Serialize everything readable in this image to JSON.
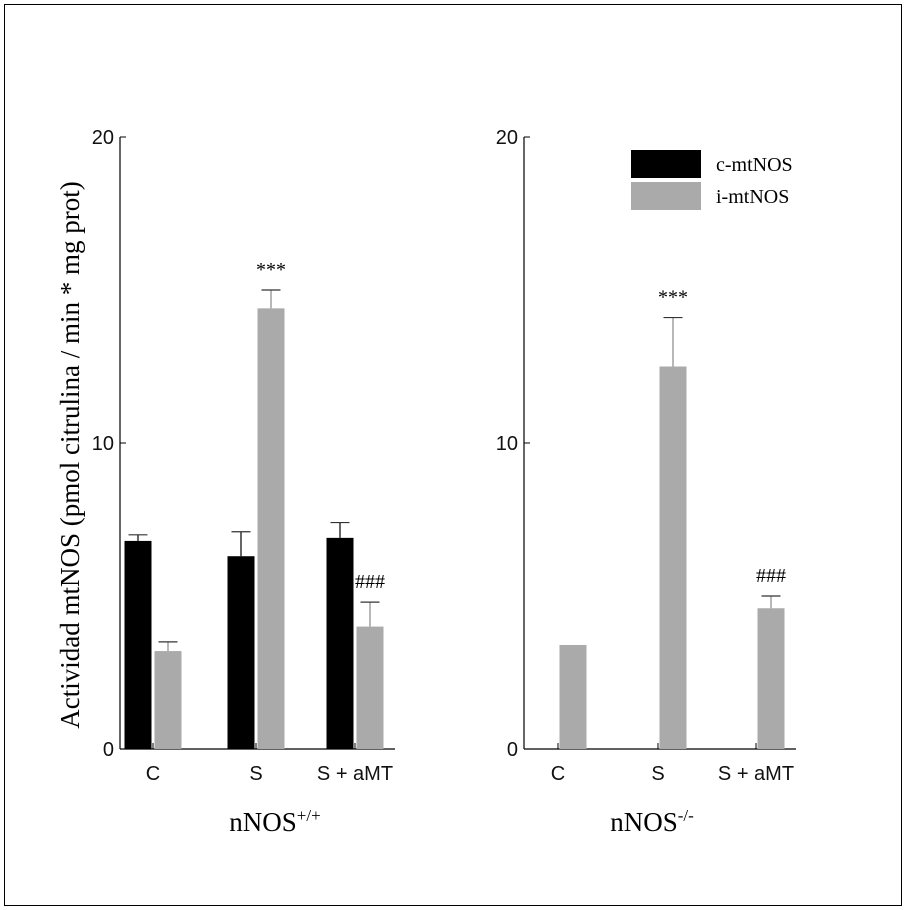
{
  "figure": {
    "ylabel": "Actividad mtNOS (pmol citrulina / min * mg prot)"
  },
  "chart_data": [
    {
      "type": "bar",
      "xlabel_main": "nNOS",
      "xlabel_sup": "+/+",
      "categories": [
        "C",
        "S",
        "S + aMT"
      ],
      "ylim": [
        0,
        20
      ],
      "yticks": [
        "0",
        "10",
        "20"
      ],
      "series": [
        {
          "name": "c-mtNOS",
          "color": "#000000",
          "values": [
            6.8,
            6.3,
            6.9
          ],
          "errors": [
            0.2,
            0.8,
            0.5
          ]
        },
        {
          "name": "i-mtNOS",
          "color": "#aaaaaa",
          "values": [
            3.2,
            14.4,
            4.0
          ],
          "errors": [
            0.3,
            0.6,
            0.8
          ]
        }
      ],
      "annotations": [
        {
          "series": 1,
          "category": 1,
          "text": "***"
        },
        {
          "series": 1,
          "category": 2,
          "text": "###"
        }
      ]
    },
    {
      "type": "bar",
      "xlabel_main": "nNOS",
      "xlabel_sup": "-/-",
      "categories": [
        "C",
        "S",
        "S + aMT"
      ],
      "ylim": [
        0,
        20
      ],
      "yticks": [
        "0",
        "10",
        "20"
      ],
      "series": [
        {
          "name": "c-mtNOS",
          "color": "#000000",
          "values": [
            0,
            0,
            0
          ],
          "errors": [
            0,
            0,
            0
          ]
        },
        {
          "name": "i-mtNOS",
          "color": "#aaaaaa",
          "values": [
            3.4,
            12.5,
            4.6
          ],
          "errors": [
            0,
            1.6,
            0.4
          ]
        }
      ],
      "annotations": [
        {
          "series": 1,
          "category": 1,
          "text": "***"
        },
        {
          "series": 1,
          "category": 2,
          "text": "###"
        }
      ],
      "legend": {
        "position": "top-right",
        "entries": [
          "c-mtNOS",
          "i-mtNOS"
        ]
      }
    }
  ]
}
